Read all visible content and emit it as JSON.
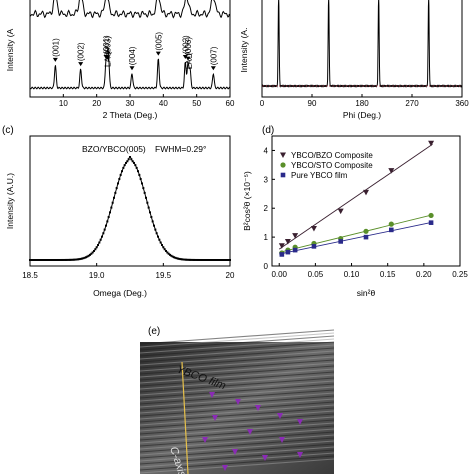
{
  "panels": {
    "a": {
      "xlabel": "2 Theta (Deg.)",
      "ylabel": "Intensity (A",
      "xticks": [
        "10",
        "20",
        "30",
        "40",
        "50",
        "60"
      ],
      "peaks": [
        {
          "label": "(001)",
          "x": 7.6,
          "h": 0.55
        },
        {
          "label": "(002)",
          "x": 15.2,
          "h": 0.45
        },
        {
          "label": "(001)",
          "x": 22.8,
          "h": 0.62
        },
        {
          "label": "(003)",
          "x": 23.3,
          "h": 0.6
        },
        {
          "label": "LAO",
          "x": 23.6,
          "h": 0.5
        },
        {
          "label": "(004)",
          "x": 30.6,
          "h": 0.35
        },
        {
          "label": "(005)",
          "x": 38.5,
          "h": 0.7
        },
        {
          "label": "(002)",
          "x": 46.6,
          "h": 0.62
        },
        {
          "label": "(006)",
          "x": 47.4,
          "h": 0.58
        },
        {
          "label": "LAO",
          "x": 48.0,
          "h": 0.45
        },
        {
          "label": "(007)",
          "x": 55.0,
          "h": 0.35
        }
      ]
    },
    "b": {
      "xlabel": "Phi (Deg.)",
      "ylabel": "Intensity (A.",
      "xticks": [
        "0",
        "90",
        "180",
        "270",
        "360"
      ],
      "peaks_phi": [
        30,
        120,
        210,
        300
      ]
    },
    "c": {
      "panel_label": "(c)",
      "annotation": "BZO/YBCO(005)",
      "fwhm": "FWHM=0.29°",
      "xlabel": "Omega (Deg.)",
      "ylabel": "Intensity (A.U.)",
      "xticks": [
        "18.5",
        "19.0",
        "19.5",
        "20"
      ],
      "peak_center": 19.25
    },
    "d": {
      "panel_label": "(d)",
      "xlabel": "sin²θ",
      "ylabel": "B²cos²θ (×10⁻⁵)",
      "xticks": [
        "0.00",
        "0.05",
        "0.10",
        "0.15",
        "0.20",
        "0.25"
      ],
      "yticks": [
        "0",
        "1",
        "2",
        "3",
        "4"
      ],
      "legend": [
        "YBCO/BZO Composite",
        "YBCO/STO Composite",
        "Pure YBCO film"
      ]
    },
    "e": {
      "panel_label": "(e)",
      "film_label": "YBCO film",
      "axis_label": "C-axis"
    }
  },
  "chart_data": [
    {
      "type": "line",
      "xlabel": "2 Theta (Deg.)",
      "ylabel": "Intensity (A",
      "xlim": [
        0,
        60
      ],
      "peaks_x": [
        7.6,
        15.2,
        22.8,
        23.3,
        23.6,
        30.6,
        38.5,
        46.6,
        47.4,
        48.0,
        55.0
      ]
    },
    {
      "type": "line",
      "xlabel": "Phi (Deg.)",
      "ylabel": "Intensity (A.",
      "xlim": [
        0,
        360
      ],
      "peaks_x": [
        30,
        120,
        210,
        300
      ]
    },
    {
      "type": "line",
      "title": "BZO/YBCO(005)",
      "xlabel": "Omega (Deg.)",
      "ylabel": "Intensity (A.U.)",
      "xlim": [
        18.5,
        20.0
      ],
      "peak_center": 19.25,
      "fwhm": 0.29
    },
    {
      "type": "scatter",
      "xlabel": "sin²θ",
      "ylabel": "B²cos²θ (×10⁻⁵)",
      "xlim": [
        -0.01,
        0.25
      ],
      "ylim": [
        0,
        4.5
      ],
      "series": [
        {
          "name": "YBCO/BZO Composite",
          "color": "#3a2030",
          "marker": "triangle-down",
          "x": [
            0.0036,
            0.012,
            0.022,
            0.048,
            0.085,
            0.12,
            0.155,
            0.21
          ],
          "y": [
            0.7,
            0.85,
            1.05,
            1.3,
            1.9,
            2.55,
            3.3,
            4.25
          ]
        },
        {
          "name": "YBCO/STO Composite",
          "color": "#5a8f2a",
          "marker": "circle",
          "x": [
            0.0036,
            0.012,
            0.022,
            0.048,
            0.085,
            0.12,
            0.155,
            0.21
          ],
          "y": [
            0.45,
            0.55,
            0.65,
            0.78,
            0.95,
            1.2,
            1.45,
            1.75
          ]
        },
        {
          "name": "Pure YBCO film",
          "color": "#2a2a8a",
          "marker": "square",
          "x": [
            0.0036,
            0.012,
            0.022,
            0.048,
            0.085,
            0.12,
            0.155,
            0.21
          ],
          "y": [
            0.4,
            0.48,
            0.55,
            0.68,
            0.85,
            1.0,
            1.25,
            1.5
          ]
        }
      ]
    }
  ]
}
